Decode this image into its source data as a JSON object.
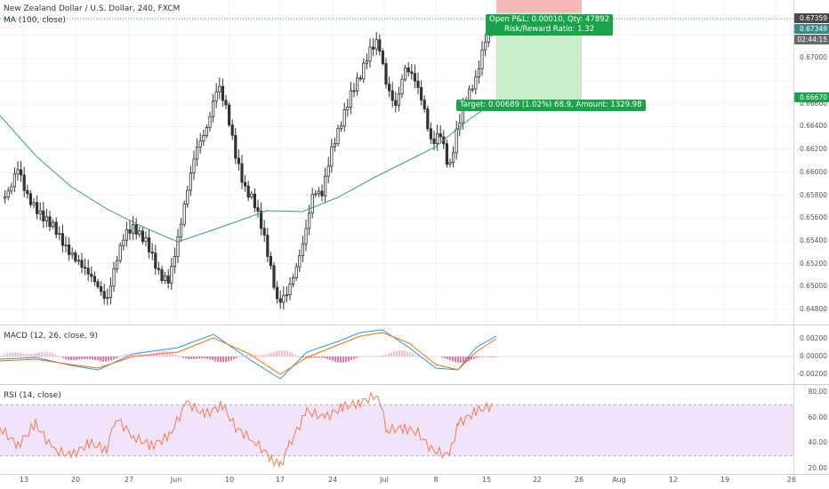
{
  "main_pane": {
    "title": "New Zealand Dollar / U.S. Dollar, 240, FXCM",
    "ma_legend": "MA (100, close)"
  },
  "macd_pane": {
    "legend": "MACD (12, 26, close, 9)"
  },
  "rsi_pane": {
    "legend": "RSI (14, close)"
  },
  "price_axis": {
    "ticks": [
      "0.67359",
      "0.67349",
      "0.67000",
      "0.66670",
      "0.66600",
      "0.66400",
      "0.66200",
      "0.66000",
      "0.65800",
      "0.65600",
      "0.65400",
      "0.65200",
      "0.65000",
      "0.64800"
    ],
    "last_price_label": "0.67359",
    "ma_label": "0.67349",
    "countdown_label": "02:44:15",
    "target_label": "0.66670"
  },
  "macd_axis": {
    "ticks": [
      "0.00200",
      "0.00000",
      "-0.00200"
    ]
  },
  "rsi_axis": {
    "ticks": [
      "80.00",
      "60.00",
      "40.00",
      "20.00"
    ]
  },
  "time_axis": [
    "13",
    "20",
    "27",
    "Jun",
    "10",
    "17",
    "24",
    "Jul",
    "8",
    "15",
    "22",
    "26",
    "Aug",
    "12",
    "19",
    "26"
  ],
  "position_tool": {
    "open_pnl": "Open P&L: 0.00010, Qty: 47892",
    "risk_reward": "Risk/Reward Ratio: 1.32",
    "target": "Target: 0.00689 (1.02%) 68.9, Amount: 1329.98"
  },
  "colors": {
    "up": "#26a69a",
    "down": "#ef5350",
    "candle": "#333333",
    "ma": "#3a9b8a",
    "macd": "#2196f3",
    "signal": "#ff6d00",
    "rsi": "#f57c4c",
    "rsi_band": "#f0e4fb",
    "profit": "#c8ecc8",
    "stop": "#f6b8b8",
    "badge": "#1aa34a"
  }
}
